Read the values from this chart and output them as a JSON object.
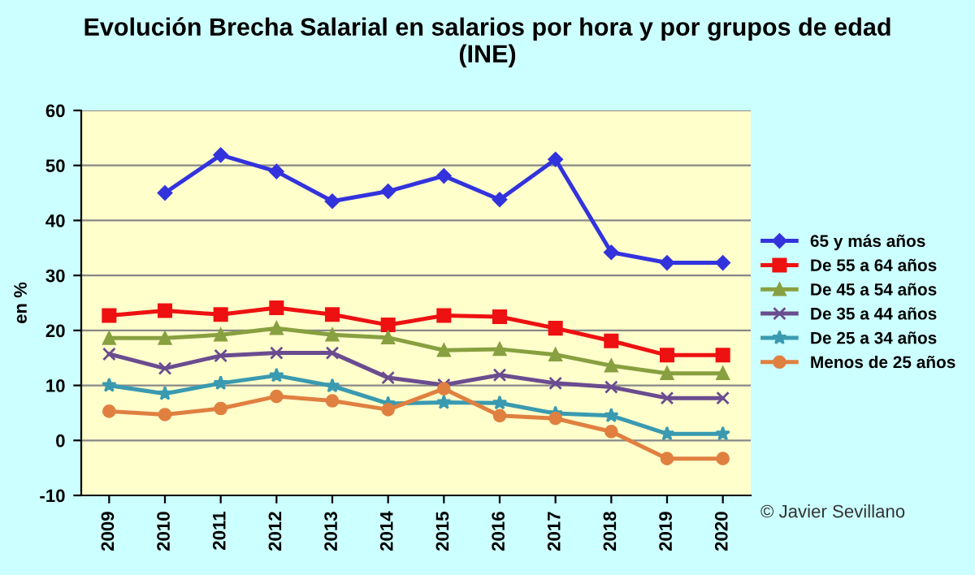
{
  "chart_data": {
    "type": "line",
    "title": "Evolución Brecha Salarial en salarios por hora y por grupos de edad (INE)",
    "ylabel": "en %",
    "categories": [
      "2009",
      "2010",
      "2011",
      "2012",
      "2013",
      "2014",
      "2015",
      "2016",
      "2017",
      "2018",
      "2019",
      "2020"
    ],
    "series": [
      {
        "name": "65 y más años",
        "color": "#3333dd",
        "marker": "diamond",
        "values": [
          null,
          45.0,
          51.9,
          48.9,
          43.5,
          45.3,
          48.1,
          43.8,
          51.1,
          34.2,
          32.3,
          32.3
        ]
      },
      {
        "name": "De 55 a 64 años",
        "color": "#ee1111",
        "marker": "square",
        "values": [
          22.7,
          23.6,
          22.9,
          24.1,
          22.9,
          21.0,
          22.7,
          22.5,
          20.4,
          18.1,
          15.5,
          15.5
        ]
      },
      {
        "name": "De 45 a 54 años",
        "color": "#88a040",
        "marker": "triangle",
        "values": [
          18.6,
          18.6,
          19.2,
          20.4,
          19.2,
          18.7,
          16.4,
          16.6,
          15.6,
          13.6,
          12.2,
          12.2
        ]
      },
      {
        "name": "De 35 a 44 años",
        "color": "#6a4c90",
        "marker": "cross",
        "values": [
          15.7,
          13.1,
          15.4,
          15.9,
          15.9,
          11.4,
          10.1,
          11.9,
          10.4,
          9.7,
          7.7,
          7.7
        ]
      },
      {
        "name": "De 25 a 34 años",
        "color": "#3a9ab0",
        "marker": "star",
        "values": [
          10.0,
          8.5,
          10.4,
          11.8,
          9.9,
          6.7,
          6.9,
          6.8,
          4.9,
          4.5,
          1.2,
          1.2
        ]
      },
      {
        "name": "Menos de 25 años",
        "color": "#e08040",
        "marker": "circle",
        "values": [
          5.3,
          4.7,
          5.8,
          8.0,
          7.2,
          5.6,
          9.4,
          4.5,
          4.0,
          1.6,
          -3.3,
          -3.3
        ]
      }
    ],
    "ylim": [
      -10,
      60
    ],
    "yticks": [
      -10,
      0,
      10,
      20,
      30,
      40,
      50,
      60
    ],
    "grid": "y",
    "legend": "right",
    "annotations": [
      "© Javier Sevillano"
    ]
  }
}
